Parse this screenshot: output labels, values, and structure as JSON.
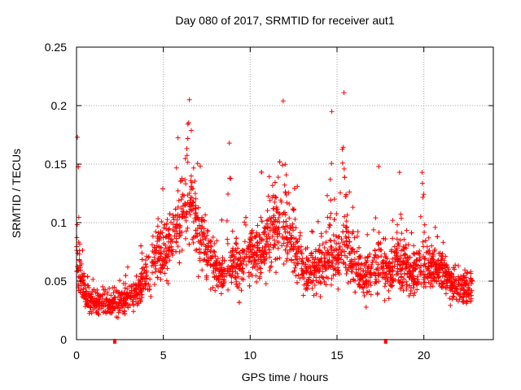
{
  "chart_data": {
    "type": "scatter",
    "title": "Day 080 of 2017, SRMTID for receiver aut1",
    "xlabel": "GPS time / hours",
    "ylabel": "SRMTID / TECUs",
    "xlim": [
      0,
      24
    ],
    "ylim": [
      0,
      0.25
    ],
    "x_ticks": [
      0,
      5,
      10,
      15,
      20
    ],
    "y_ticks": [
      0,
      0.05,
      0.1,
      0.15,
      0.2,
      0.25
    ],
    "grid": true,
    "marker": "+",
    "color": "#ff0000",
    "series_envelope_hours": [
      0,
      0.3,
      0.6,
      1,
      2,
      3,
      3.5,
      4,
      4.5,
      5,
      5.5,
      6,
      6.4,
      6.6,
      7,
      7.5,
      8,
      8.5,
      9,
      9.5,
      10,
      10.5,
      11,
      11.5,
      12,
      12.5,
      13,
      13.5,
      14,
      14.5,
      15,
      15.4,
      15.7,
      16,
      16.5,
      17,
      17.5,
      18,
      18.5,
      19,
      19.5,
      20,
      20.5,
      21,
      21.5,
      22,
      22.5,
      22.8
    ],
    "series_envelope_median": [
      0.07,
      0.05,
      0.035,
      0.032,
      0.03,
      0.035,
      0.04,
      0.055,
      0.07,
      0.075,
      0.09,
      0.1,
      0.12,
      0.12,
      0.09,
      0.075,
      0.06,
      0.055,
      0.065,
      0.065,
      0.075,
      0.07,
      0.09,
      0.1,
      0.095,
      0.08,
      0.06,
      0.055,
      0.065,
      0.075,
      0.065,
      0.08,
      0.075,
      0.06,
      0.055,
      0.06,
      0.065,
      0.06,
      0.065,
      0.06,
      0.055,
      0.065,
      0.06,
      0.06,
      0.05,
      0.045,
      0.045,
      0.04
    ],
    "notable_peaks": [
      {
        "x": 0.05,
        "y": 0.173
      },
      {
        "x": 6.5,
        "y": 0.205
      },
      {
        "x": 8.8,
        "y": 0.168
      },
      {
        "x": 11.9,
        "y": 0.204
      },
      {
        "x": 14.7,
        "y": 0.195
      },
      {
        "x": 15.4,
        "y": 0.211
      },
      {
        "x": 17.4,
        "y": 0.148
      },
      {
        "x": 18.6,
        "y": 0.143
      },
      {
        "x": 19.9,
        "y": 0.143
      }
    ],
    "axis_markers_x": [
      2.2,
      17.8
    ]
  }
}
